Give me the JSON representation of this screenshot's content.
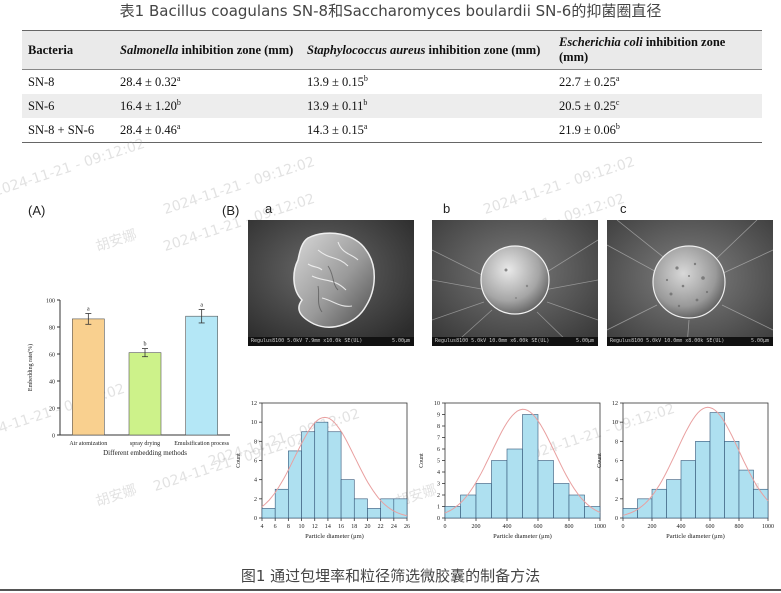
{
  "table_title": "表1 Bacillus coagulans SN-8和Saccharomyces boulardii SN-6的抑菌圈直径",
  "table": {
    "headers": [
      "Bacteria",
      "Salmonella",
      " inhibition zone (mm)",
      "Staphylococcus aureus",
      " inhibition zone (mm)",
      "Escherichia coli",
      " inhibition zone (mm)"
    ],
    "rows": [
      [
        {
          "v": "SN-8"
        },
        {
          "v": "28.4 ± 0.32",
          "s": "a"
        },
        {
          "v": "13.9 ± 0.15",
          "s": "b"
        },
        {
          "v": "22.7 ± 0.25",
          "s": "a"
        }
      ],
      [
        {
          "v": "SN-6"
        },
        {
          "v": "16.4 ± 1.20",
          "s": "b"
        },
        {
          "v": "13.9 ± 0.11",
          "s": "b"
        },
        {
          "v": "20.5 ± 0.25",
          "s": "c"
        }
      ],
      [
        {
          "v": "SN-8 + SN-6"
        },
        {
          "v": "28.4 ± 0.46",
          "s": "a"
        },
        {
          "v": "14.3 ± 0.15",
          "s": "a"
        },
        {
          "v": "21.9 ± 0.06",
          "s": "b"
        }
      ]
    ]
  },
  "panel_labels": {
    "A": "(A)",
    "B": "(B)",
    "a": "a",
    "b": "b",
    "c": "c"
  },
  "sem_bars": [
    {
      "left": "Regulus8100 5.0kV 7.9mm x10.0k SE(UL)",
      "right": "5.00μm"
    },
    {
      "left": "Regulus8100 5.0kV 10.0mm x6.00k SE(UL)",
      "right": "5.00μm"
    },
    {
      "left": "Regulus8100 5.0kV 10.0mm x8.00k SE(UL)",
      "right": "5.00μm"
    }
  ],
  "watermarks": [
    "胡安娜",
    "2024-11-21 - 09:12:02"
  ],
  "caption": "图1 通过包埋率和粒径筛选微胶囊的制备方法",
  "colors": {
    "bar_air": "#f9d08f",
    "bar_spray": "#cdf28a",
    "bar_emul": "#b4e7f6",
    "hist": "#aee0f0",
    "hist_edge": "#335577",
    "fit_curve": "#e9a0a0"
  },
  "chart_data": [
    {
      "type": "bar",
      "categories": [
        "Air atomization",
        "spray drying",
        "Emulsification process"
      ],
      "values": [
        86,
        61,
        88
      ],
      "errors": [
        4,
        3,
        5
      ],
      "letters": [
        "a",
        "b",
        "a"
      ],
      "xlabel": "Different embedding methods",
      "ylabel": "Embedding rate(%)",
      "ylim": [
        0,
        100
      ],
      "yticks": [
        0,
        20,
        40,
        60,
        80,
        100
      ]
    },
    {
      "type": "bar",
      "histogram": true,
      "bins": [
        4,
        6,
        8,
        10,
        12,
        14,
        16,
        18,
        20,
        22,
        24,
        26
      ],
      "counts": [
        1,
        3,
        7,
        9,
        10,
        9,
        4,
        2,
        1,
        2,
        2
      ],
      "xlabel": "Particle diameter (μm)",
      "ylabel": "Count",
      "ylim": [
        0,
        12
      ],
      "yticks": [
        0,
        2,
        4,
        6,
        8,
        10,
        12
      ],
      "xticks": [
        4,
        6,
        8,
        10,
        12,
        14,
        16,
        18,
        20,
        22,
        24,
        26
      ]
    },
    {
      "type": "bar",
      "histogram": true,
      "bins": [
        0,
        100,
        200,
        300,
        400,
        500,
        600,
        700,
        800,
        900,
        1000
      ],
      "counts": [
        1,
        2,
        3,
        5,
        6,
        9,
        5,
        3,
        2,
        1
      ],
      "xlabel": "Particle diameter (μm)",
      "ylabel": "Count",
      "ylim": [
        0,
        10
      ],
      "yticks": [
        0,
        1,
        2,
        3,
        4,
        5,
        6,
        7,
        8,
        9,
        10
      ],
      "xticks": [
        0,
        200,
        400,
        600,
        800,
        1000
      ]
    },
    {
      "type": "bar",
      "histogram": true,
      "bins": [
        0,
        100,
        200,
        300,
        400,
        500,
        600,
        700,
        800,
        900,
        1000
      ],
      "counts": [
        1,
        2,
        3,
        4,
        6,
        8,
        11,
        8,
        5,
        3
      ],
      "xlabel": "Particle diameter (μm)",
      "ylabel": "Count",
      "ylim": [
        0,
        12
      ],
      "yticks": [
        0,
        2,
        4,
        6,
        8,
        10,
        12
      ],
      "xticks": [
        0,
        200,
        400,
        600,
        800,
        1000
      ]
    }
  ]
}
